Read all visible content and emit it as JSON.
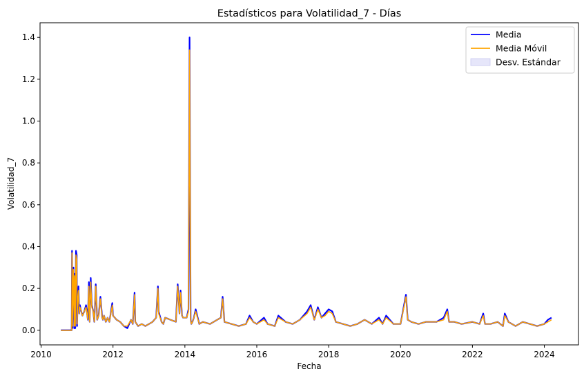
{
  "chart_data": {
    "type": "line",
    "title": "Estadísticos para Volatilidad_7 - Días",
    "xlabel": "Fecha",
    "ylabel": "Volatilidad_7",
    "xlim": [
      2009.97,
      2024.95
    ],
    "ylim": [
      -0.07,
      1.47
    ],
    "x_ticks": [
      2010,
      2012,
      2014,
      2016,
      2018,
      2020,
      2022,
      2024
    ],
    "x_tick_labels": [
      "2010",
      "2012",
      "2014",
      "2016",
      "2018",
      "2020",
      "2022",
      "2024"
    ],
    "y_ticks": [
      0.0,
      0.2,
      0.4,
      0.6,
      0.8,
      1.0,
      1.2,
      1.4
    ],
    "y_tick_labels": [
      "0.0",
      "0.2",
      "0.4",
      "0.6",
      "0.8",
      "1.0",
      "1.2",
      "1.4"
    ],
    "grid": false,
    "legend_position": "top-right",
    "legend": [
      {
        "label": "Media",
        "kind": "line",
        "color": "#0000ff"
      },
      {
        "label": "Media Móvil",
        "kind": "line",
        "color": "#ffa500"
      },
      {
        "label": "Desv. Estándar",
        "kind": "area",
        "color": "#e6e6fa"
      }
    ],
    "series": [
      {
        "name": "Media",
        "color": "#0000ff",
        "x": [
          2010.55,
          2010.85,
          2010.86,
          2010.87,
          2010.9,
          2010.92,
          2010.93,
          2010.95,
          2010.97,
          2010.99,
          2011.0,
          2011.02,
          2011.04,
          2011.06,
          2011.08,
          2011.1,
          2011.15,
          2011.2,
          2011.25,
          2011.3,
          2011.33,
          2011.35,
          2011.38,
          2011.41,
          2011.45,
          2011.48,
          2011.52,
          2011.56,
          2011.58,
          2011.6,
          2011.65,
          2011.7,
          2011.72,
          2011.75,
          2011.8,
          2011.85,
          2011.9,
          2011.98,
          2012.0,
          2012.1,
          2012.2,
          2012.3,
          2012.4,
          2012.5,
          2012.55,
          2012.6,
          2012.62,
          2012.7,
          2012.8,
          2012.9,
          2013.0,
          2013.1,
          2013.2,
          2013.25,
          2013.27,
          2013.35,
          2013.4,
          2013.45,
          2013.6,
          2013.75,
          2013.8,
          2013.85,
          2013.88,
          2013.92,
          2013.95,
          2014.05,
          2014.1,
          2014.13,
          2014.16,
          2014.18,
          2014.21,
          2014.25,
          2014.3,
          2014.4,
          2014.5,
          2014.7,
          2014.9,
          2015.0,
          2015.05,
          2015.1,
          2015.3,
          2015.5,
          2015.7,
          2015.8,
          2015.9,
          2016.0,
          2016.2,
          2016.3,
          2016.5,
          2016.6,
          2016.8,
          2017.0,
          2017.2,
          2017.4,
          2017.5,
          2017.6,
          2017.7,
          2017.8,
          2017.9,
          2018.0,
          2018.1,
          2018.2,
          2018.4,
          2018.6,
          2018.8,
          2019.0,
          2019.2,
          2019.4,
          2019.5,
          2019.6,
          2019.8,
          2020.0,
          2020.15,
          2020.2,
          2020.3,
          2020.5,
          2020.7,
          2021.0,
          2021.2,
          2021.3,
          2021.35,
          2021.5,
          2021.7,
          2022.0,
          2022.2,
          2022.3,
          2022.35,
          2022.5,
          2022.7,
          2022.85,
          2022.9,
          2023.0,
          2023.2,
          2023.4,
          2023.6,
          2023.8,
          2024.0,
          2024.1,
          2024.2
        ],
        "y": [
          0.0,
          0.0,
          0.38,
          0.01,
          0.3,
          0.01,
          0.27,
          0.01,
          0.38,
          0.36,
          0.02,
          0.16,
          0.21,
          0.08,
          0.12,
          0.1,
          0.07,
          0.09,
          0.12,
          0.05,
          0.23,
          0.04,
          0.25,
          0.12,
          0.09,
          0.04,
          0.22,
          0.05,
          0.06,
          0.07,
          0.16,
          0.06,
          0.05,
          0.07,
          0.04,
          0.06,
          0.04,
          0.13,
          0.07,
          0.05,
          0.04,
          0.02,
          0.01,
          0.05,
          0.03,
          0.18,
          0.04,
          0.02,
          0.03,
          0.02,
          0.03,
          0.04,
          0.06,
          0.21,
          0.09,
          0.04,
          0.03,
          0.06,
          0.05,
          0.04,
          0.22,
          0.08,
          0.19,
          0.07,
          0.06,
          0.06,
          0.1,
          1.4,
          0.05,
          0.03,
          0.04,
          0.06,
          0.1,
          0.03,
          0.04,
          0.03,
          0.05,
          0.06,
          0.16,
          0.04,
          0.03,
          0.02,
          0.03,
          0.07,
          0.04,
          0.03,
          0.06,
          0.03,
          0.02,
          0.07,
          0.04,
          0.03,
          0.05,
          0.09,
          0.12,
          0.05,
          0.11,
          0.06,
          0.08,
          0.1,
          0.09,
          0.04,
          0.03,
          0.02,
          0.03,
          0.05,
          0.03,
          0.06,
          0.03,
          0.07,
          0.03,
          0.03,
          0.17,
          0.05,
          0.04,
          0.03,
          0.04,
          0.04,
          0.06,
          0.1,
          0.04,
          0.04,
          0.03,
          0.04,
          0.03,
          0.08,
          0.03,
          0.03,
          0.04,
          0.02,
          0.08,
          0.04,
          0.02,
          0.04,
          0.03,
          0.02,
          0.03,
          0.05,
          0.06
        ]
      },
      {
        "name": "Media Móvil",
        "color": "#ffa500",
        "x": [
          2010.55,
          2010.85,
          2010.86,
          2010.87,
          2010.9,
          2010.92,
          2010.93,
          2010.95,
          2010.97,
          2010.99,
          2011.0,
          2011.02,
          2011.04,
          2011.06,
          2011.08,
          2011.1,
          2011.15,
          2011.2,
          2011.25,
          2011.3,
          2011.33,
          2011.35,
          2011.38,
          2011.41,
          2011.45,
          2011.48,
          2011.52,
          2011.56,
          2011.58,
          2011.6,
          2011.65,
          2011.7,
          2011.72,
          2011.75,
          2011.8,
          2011.85,
          2011.9,
          2011.98,
          2012.0,
          2012.1,
          2012.2,
          2012.3,
          2012.4,
          2012.5,
          2012.55,
          2012.6,
          2012.62,
          2012.7,
          2012.8,
          2012.9,
          2013.0,
          2013.1,
          2013.2,
          2013.25,
          2013.27,
          2013.35,
          2013.4,
          2013.45,
          2013.6,
          2013.75,
          2013.8,
          2013.85,
          2013.88,
          2013.92,
          2013.95,
          2014.05,
          2014.1,
          2014.13,
          2014.16,
          2014.18,
          2014.21,
          2014.25,
          2014.3,
          2014.4,
          2014.5,
          2014.7,
          2014.9,
          2015.0,
          2015.05,
          2015.1,
          2015.3,
          2015.5,
          2015.7,
          2015.8,
          2015.9,
          2016.0,
          2016.2,
          2016.3,
          2016.5,
          2016.6,
          2016.8,
          2017.0,
          2017.2,
          2017.4,
          2017.5,
          2017.6,
          2017.7,
          2017.8,
          2017.9,
          2018.0,
          2018.1,
          2018.2,
          2018.4,
          2018.6,
          2018.8,
          2019.0,
          2019.2,
          2019.4,
          2019.5,
          2019.6,
          2019.8,
          2020.0,
          2020.15,
          2020.2,
          2020.3,
          2020.5,
          2020.7,
          2021.0,
          2021.2,
          2021.3,
          2021.35,
          2021.5,
          2021.7,
          2022.0,
          2022.2,
          2022.3,
          2022.35,
          2022.5,
          2022.7,
          2022.85,
          2022.9,
          2023.0,
          2023.2,
          2023.4,
          2023.6,
          2023.8,
          2024.0,
          2024.1,
          2024.2
        ],
        "y": [
          0.0,
          0.0,
          0.37,
          0.02,
          0.29,
          0.02,
          0.26,
          0.02,
          0.36,
          0.34,
          0.03,
          0.15,
          0.19,
          0.08,
          0.11,
          0.1,
          0.07,
          0.09,
          0.11,
          0.05,
          0.21,
          0.04,
          0.23,
          0.11,
          0.09,
          0.04,
          0.21,
          0.05,
          0.06,
          0.07,
          0.15,
          0.06,
          0.05,
          0.07,
          0.04,
          0.06,
          0.04,
          0.12,
          0.07,
          0.05,
          0.04,
          0.02,
          0.02,
          0.05,
          0.03,
          0.17,
          0.04,
          0.02,
          0.03,
          0.02,
          0.03,
          0.04,
          0.06,
          0.2,
          0.08,
          0.04,
          0.03,
          0.06,
          0.05,
          0.04,
          0.21,
          0.08,
          0.18,
          0.07,
          0.06,
          0.06,
          0.09,
          1.34,
          0.05,
          0.03,
          0.04,
          0.06,
          0.09,
          0.03,
          0.04,
          0.03,
          0.05,
          0.06,
          0.15,
          0.04,
          0.03,
          0.02,
          0.03,
          0.06,
          0.04,
          0.03,
          0.05,
          0.03,
          0.02,
          0.06,
          0.04,
          0.03,
          0.05,
          0.08,
          0.11,
          0.05,
          0.1,
          0.06,
          0.07,
          0.09,
          0.08,
          0.04,
          0.03,
          0.02,
          0.03,
          0.05,
          0.03,
          0.05,
          0.03,
          0.06,
          0.03,
          0.03,
          0.16,
          0.05,
          0.04,
          0.03,
          0.04,
          0.04,
          0.05,
          0.09,
          0.04,
          0.04,
          0.03,
          0.04,
          0.03,
          0.07,
          0.03,
          0.03,
          0.04,
          0.02,
          0.07,
          0.04,
          0.02,
          0.04,
          0.03,
          0.02,
          0.03,
          0.04,
          0.05
        ]
      }
    ]
  }
}
